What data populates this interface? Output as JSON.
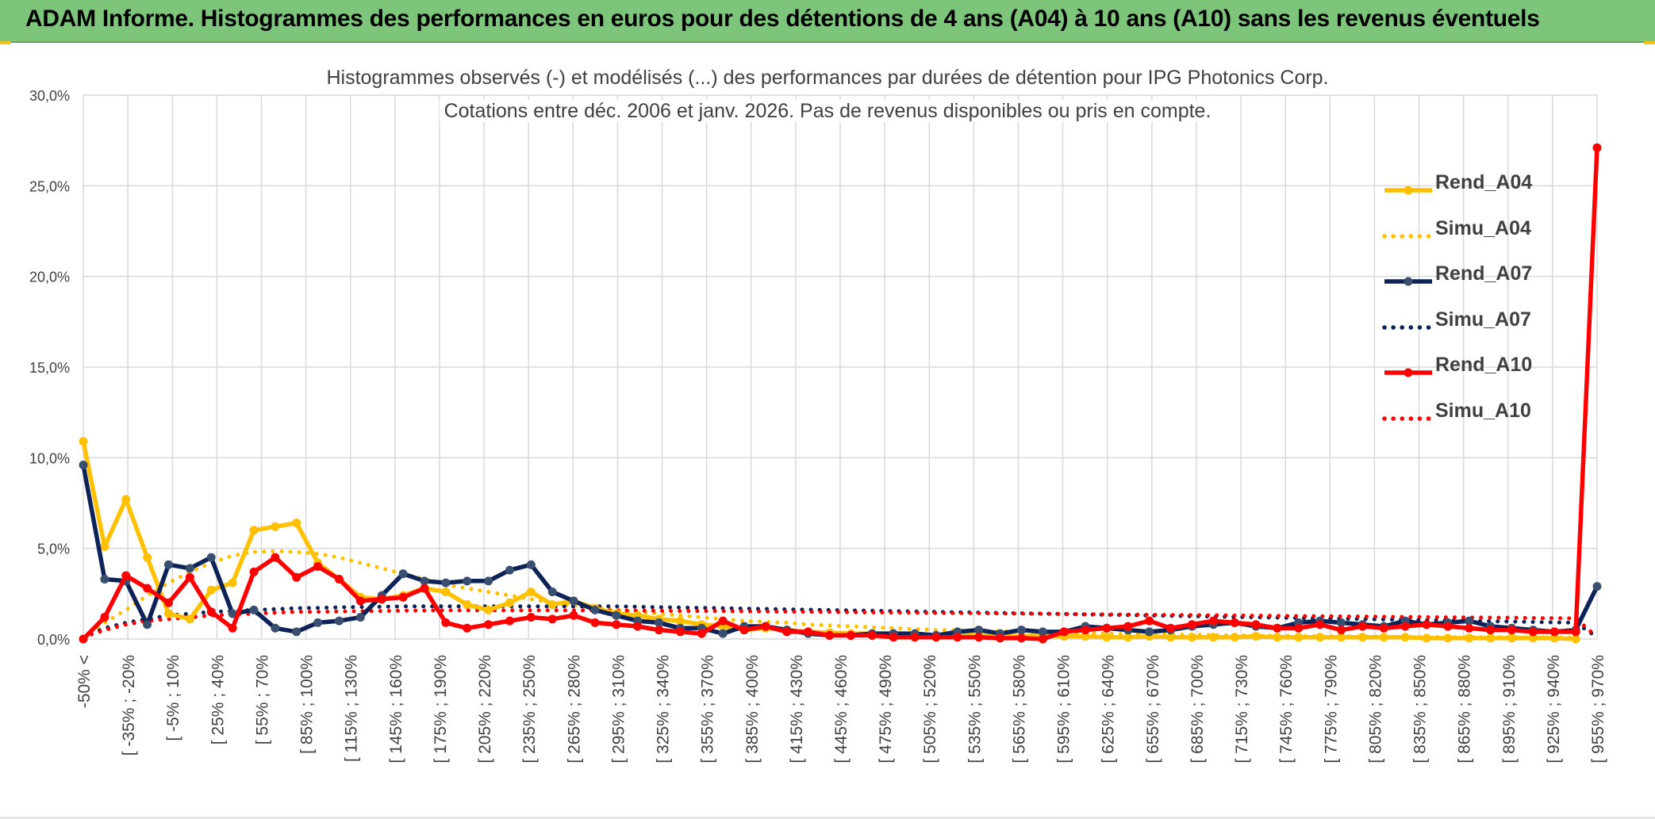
{
  "banner": {
    "title": "ADAM Informe. Histogrammes des performances en euros pour des détentions de 4 ans (A04) à 10 ans (A10) sans les revenus éventuels"
  },
  "colors": {
    "banner": "#7cc57a",
    "a04": "#ffc000",
    "a07": "#0d2357",
    "a07_marker": "#3a4f70",
    "a10": "#ff0000",
    "grid": "#d9d9d9",
    "text": "#404040"
  },
  "chart_data": {
    "type": "line",
    "title": "Histogrammes observés (-) et modélisés (...) des performances par durées de détention pour IPG Photonics Corp.",
    "subtitle": "Cotations entre déc. 2006 et janv. 2026. Pas de revenus disponibles ou pris en compte.",
    "ylim": [
      0,
      30
    ],
    "yticks": [
      "0,0%",
      "5,0%",
      "10,0%",
      "15,0%",
      "20,0%",
      "25,0%",
      "30,0%"
    ],
    "x_labels": [
      "-50% <",
      "[ -35% ; -20%",
      "[ -5% ; 10%",
      "[ 25% ; 40%",
      "[ 55% ; 70%",
      "[ 85% ; 100%",
      "[ 115% ; 130%",
      "[ 145% ; 160%",
      "[ 175% ; 190%",
      "[ 205% ; 220%",
      "[ 235% ; 250%",
      "[ 265% ; 280%",
      "[ 295% ; 310%",
      "[ 325% ; 340%",
      "[ 355% ; 370%",
      "[ 385% ; 400%",
      "[ 415% ; 430%",
      "[ 445% ; 460%",
      "[ 475% ; 490%",
      "[ 505% ; 520%",
      "[ 535% ; 550%",
      "[ 565% ; 580%",
      "[ 595% ; 610%",
      "[ 625% ; 640%",
      "[ 655% ; 670%",
      "[ 685% ; 700%",
      "[ 715% ; 730%",
      "[ 745% ; 760%",
      "[ 775% ; 790%",
      "[ 805% ; 820%",
      "[ 835% ; 850%",
      "[ 865% ; 880%",
      "[ 895% ; 910%",
      "[ 925% ; 940%",
      "[ 955% ; 970%"
    ],
    "series": [
      {
        "name": "Rend_A04",
        "style": "solid",
        "color": "#ffc000",
        "marker": "#ffc000",
        "values": [
          10.9,
          5.1,
          7.7,
          4.5,
          1.4,
          1.1,
          2.7,
          3.1,
          6.0,
          6.2,
          6.4,
          4.2,
          3.3,
          2.3,
          2.2,
          2.4,
          2.8,
          2.6,
          1.9,
          1.6,
          2.0,
          2.6,
          1.9,
          2.1,
          1.7,
          1.4,
          1.3,
          1.1,
          1.0,
          0.8,
          0.7,
          0.5,
          0.6,
          0.5,
          0.4,
          0.35,
          0.3,
          0.3,
          0.3,
          0.25,
          0.2,
          0.25,
          0.2,
          0.2,
          0.15,
          0.2,
          0.15,
          0.15,
          0.1,
          0.1,
          0.15,
          0.1,
          0.1,
          0.1,
          0.1,
          0.15,
          0.1,
          0.1,
          0.1,
          0.1,
          0.1,
          0.1,
          0.1,
          0.05,
          0.05,
          0.05,
          0.05,
          0.05,
          0.05,
          0.05,
          0.0
        ]
      },
      {
        "name": "Simu_A04",
        "style": "dotted",
        "color": "#ffc000",
        "values": [
          0.1,
          0.9,
          1.6,
          2.4,
          3.1,
          3.7,
          4.2,
          4.6,
          4.8,
          4.85,
          4.8,
          4.7,
          4.5,
          4.2,
          3.9,
          3.6,
          3.3,
          3.0,
          2.8,
          2.6,
          2.4,
          2.2,
          2.0,
          1.85,
          1.7,
          1.6,
          1.5,
          1.4,
          1.3,
          1.2,
          1.1,
          1.0,
          0.95,
          0.9,
          0.8,
          0.75,
          0.7,
          0.65,
          0.6,
          0.55,
          0.5,
          0.48,
          0.45,
          0.42,
          0.4,
          0.37,
          0.35,
          0.32,
          0.3,
          0.28,
          0.26,
          0.25,
          0.23,
          0.22,
          0.2,
          0.19,
          0.18,
          0.17,
          0.16,
          0.15,
          0.14,
          0.13,
          0.12,
          0.12,
          0.11,
          0.1,
          0.1,
          0.09,
          0.09,
          0.08,
          0.08
        ]
      },
      {
        "name": "Rend_A07",
        "style": "solid",
        "color": "#0d2357",
        "marker": "#3a4f70",
        "values": [
          9.6,
          3.3,
          3.2,
          0.8,
          4.1,
          3.9,
          4.5,
          1.4,
          1.6,
          0.6,
          0.4,
          0.9,
          1.0,
          1.2,
          2.4,
          3.6,
          3.2,
          3.1,
          3.2,
          3.2,
          3.8,
          4.1,
          2.6,
          2.1,
          1.6,
          1.3,
          1.0,
          0.9,
          0.6,
          0.6,
          0.3,
          0.7,
          0.7,
          0.5,
          0.3,
          0.2,
          0.2,
          0.3,
          0.3,
          0.3,
          0.2,
          0.4,
          0.5,
          0.3,
          0.5,
          0.4,
          0.4,
          0.7,
          0.6,
          0.5,
          0.4,
          0.5,
          0.7,
          0.8,
          0.9,
          0.7,
          0.6,
          0.9,
          1.0,
          0.9,
          0.8,
          0.7,
          1.0,
          0.8,
          0.9,
          1.0,
          0.7,
          0.6,
          0.5,
          0.4,
          0.5,
          2.9
        ]
      },
      {
        "name": "Simu_A07",
        "style": "dotted",
        "color": "#0d2357",
        "values": [
          0.1,
          0.6,
          0.9,
          1.1,
          1.3,
          1.4,
          1.5,
          1.55,
          1.6,
          1.65,
          1.7,
          1.72,
          1.75,
          1.77,
          1.78,
          1.8,
          1.8,
          1.8,
          1.8,
          1.8,
          1.8,
          1.8,
          1.8,
          1.8,
          1.8,
          1.8,
          1.78,
          1.76,
          1.74,
          1.72,
          1.7,
          1.68,
          1.66,
          1.64,
          1.62,
          1.6,
          1.58,
          1.56,
          1.54,
          1.52,
          1.5,
          1.48,
          1.46,
          1.44,
          1.42,
          1.4,
          1.38,
          1.36,
          1.34,
          1.32,
          1.3,
          1.28,
          1.26,
          1.24,
          1.22,
          1.2,
          1.18,
          1.16,
          1.14,
          1.12,
          1.1,
          1.08,
          1.06,
          1.04,
          1.02,
          1.0,
          0.98,
          0.96,
          0.94,
          0.92,
          0.9,
          0.1
        ]
      },
      {
        "name": "Rend_A10",
        "style": "solid",
        "color": "#ff0000",
        "marker": "#ff0000",
        "values": [
          0.0,
          1.2,
          3.5,
          2.8,
          2.0,
          3.4,
          1.5,
          0.6,
          3.7,
          4.5,
          3.4,
          4.0,
          3.3,
          2.1,
          2.2,
          2.3,
          2.8,
          0.9,
          0.6,
          0.8,
          1.0,
          1.2,
          1.1,
          1.3,
          0.9,
          0.8,
          0.7,
          0.5,
          0.4,
          0.3,
          1.0,
          0.5,
          0.7,
          0.4,
          0.4,
          0.2,
          0.2,
          0.2,
          0.1,
          0.1,
          0.1,
          0.1,
          0.1,
          0.05,
          0.05,
          0.0,
          0.4,
          0.5,
          0.6,
          0.7,
          1.0,
          0.6,
          0.8,
          1.0,
          0.9,
          0.8,
          0.6,
          0.6,
          0.8,
          0.5,
          0.7,
          0.6,
          0.7,
          0.8,
          0.7,
          0.6,
          0.5,
          0.5,
          0.4,
          0.4,
          0.4,
          27.1
        ]
      },
      {
        "name": "Simu_A10",
        "style": "dotted",
        "color": "#ff0000",
        "values": [
          0.1,
          0.5,
          0.8,
          1.0,
          1.1,
          1.2,
          1.3,
          1.35,
          1.4,
          1.45,
          1.5,
          1.5,
          1.52,
          1.54,
          1.55,
          1.56,
          1.57,
          1.58,
          1.58,
          1.58,
          1.58,
          1.58,
          1.58,
          1.58,
          1.58,
          1.57,
          1.56,
          1.56,
          1.55,
          1.55,
          1.54,
          1.53,
          1.52,
          1.51,
          1.5,
          1.49,
          1.48,
          1.47,
          1.46,
          1.45,
          1.44,
          1.43,
          1.42,
          1.41,
          1.4,
          1.39,
          1.38,
          1.37,
          1.36,
          1.35,
          1.34,
          1.33,
          1.32,
          1.31,
          1.3,
          1.29,
          1.28,
          1.27,
          1.26,
          1.25,
          1.24,
          1.23,
          1.22,
          1.21,
          1.2,
          1.19,
          1.18,
          1.17,
          1.16,
          1.15,
          1.14,
          0.1
        ]
      }
    ],
    "legend_position": "right"
  }
}
